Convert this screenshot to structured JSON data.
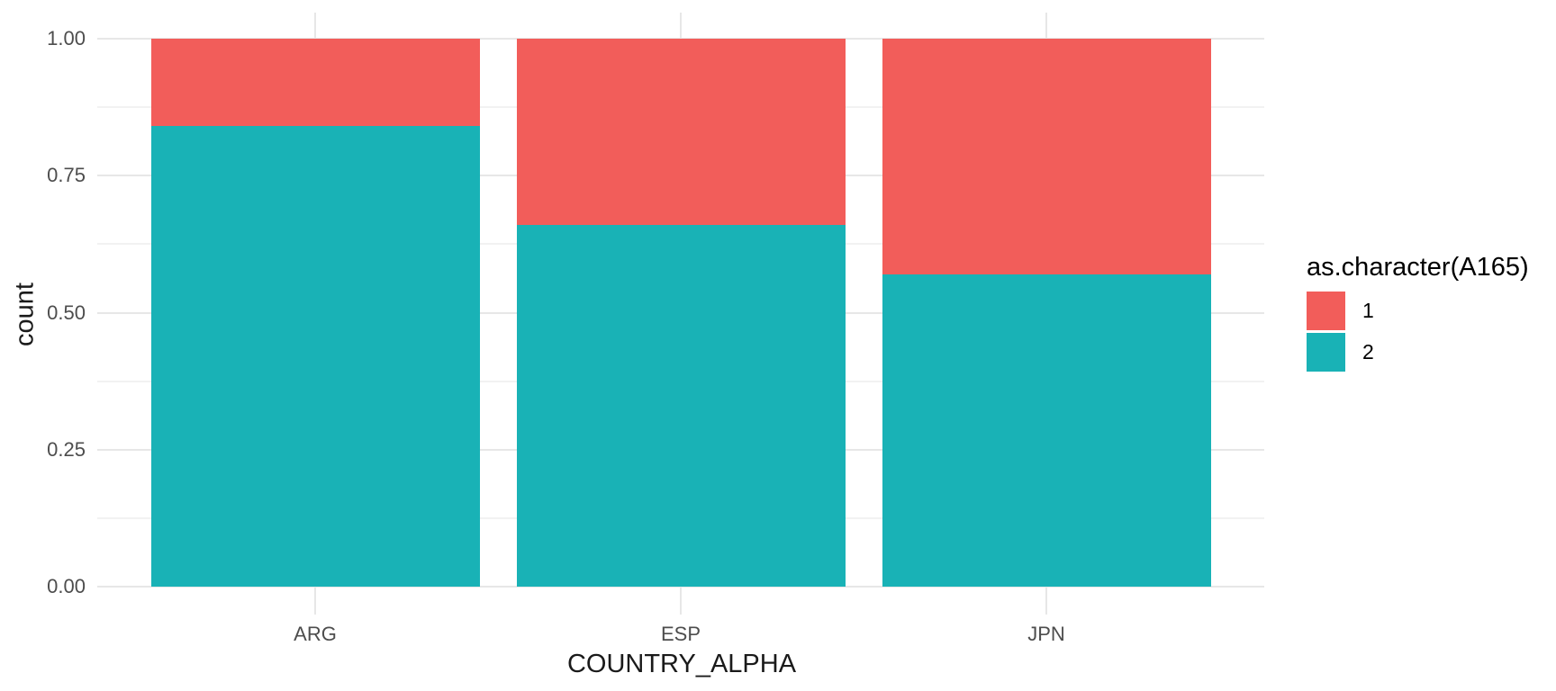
{
  "chart_data": {
    "type": "bar",
    "stacked": true,
    "normalized": true,
    "orientation": "vertical",
    "title": "",
    "categories": [
      "ARG",
      "ESP",
      "JPN"
    ],
    "series": [
      {
        "name": "1",
        "color": "#F25D5A",
        "values": [
          0.16,
          0.34,
          0.43
        ]
      },
      {
        "name": "2",
        "color": "#19B2B6",
        "values": [
          0.84,
          0.66,
          0.57
        ]
      }
    ],
    "xlabel": "COUNTRY_ALPHA",
    "ylabel": "count",
    "ylim": [
      0,
      1
    ],
    "yticks": [
      0,
      0.25,
      0.5,
      0.75,
      1
    ],
    "ytick_labels": [
      "0.00",
      "0.25",
      "0.50",
      "0.75",
      "1.00"
    ],
    "y_minor_ticks": [
      0.125,
      0.375,
      0.625,
      0.875
    ],
    "grid": true,
    "legend": {
      "title": "as.character(A165)",
      "position": "right",
      "entries": [
        "1",
        "2"
      ]
    },
    "colors": {
      "background": "#FFFFFF",
      "tick_label": "#4D4D4D",
      "axis_title": "#1A1A1A",
      "grid_major": "#E7E7E7",
      "grid_minor": "#F2F2F2"
    }
  }
}
